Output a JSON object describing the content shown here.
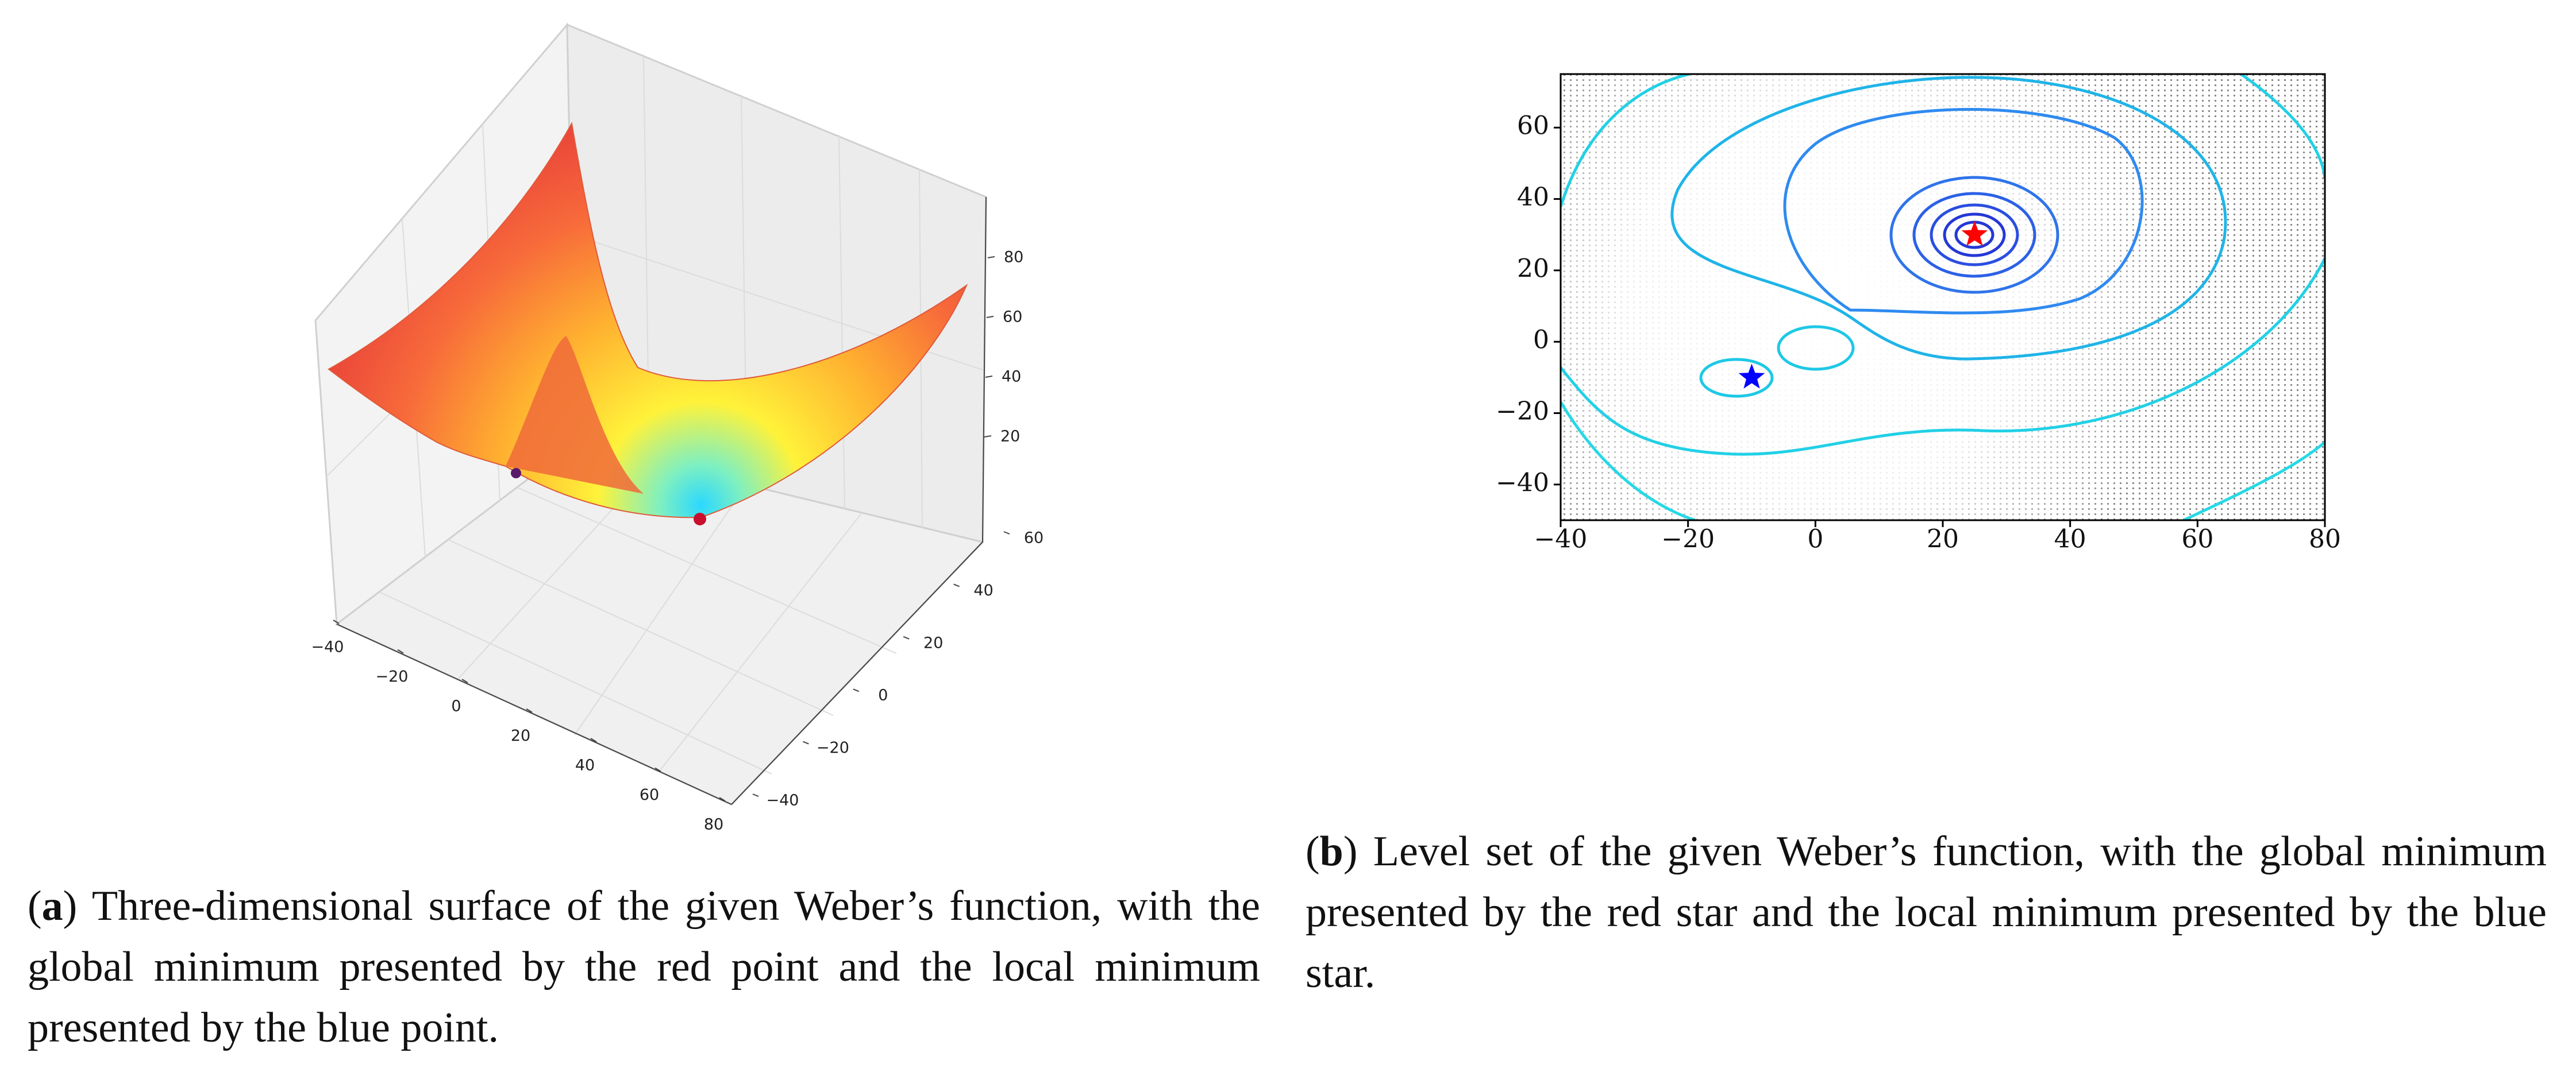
{
  "figure": {
    "panels": [
      {
        "type": "surface3d",
        "xticks": [
          {
            "value": -40,
            "label": "−40"
          },
          {
            "value": -20,
            "label": "−20"
          },
          0,
          20,
          40,
          60,
          80
        ],
        "yticks": [
          {
            "value": -40,
            "label": "−40"
          },
          {
            "value": -20,
            "label": "−20"
          },
          0,
          20,
          40,
          60
        ],
        "zticks": [
          20,
          40,
          60,
          80
        ],
        "caption": {
          "open": "(",
          "label": "a",
          "text": ") Three-dimensional surface of the given Weber’s function, with the global minimum presented by the red point and the local minimum presented by the blue point."
        }
      },
      {
        "type": "contour",
        "xlim": [
          -40,
          80
        ],
        "ylim": [
          -50,
          75
        ],
        "xticks": [
          {
            "value": -40,
            "label": "−40"
          },
          {
            "value": -20,
            "label": "−20"
          },
          0,
          20,
          40,
          60,
          80
        ],
        "yticks": [
          {
            "value": -40,
            "label": "−40"
          },
          {
            "value": -20,
            "label": "−20"
          },
          0,
          20,
          40,
          60
        ],
        "global_minimum": {
          "x": 25,
          "y": 30,
          "color": "red"
        },
        "local_minimum": {
          "x": -10,
          "y": -10,
          "color": "blue"
        },
        "caption": {
          "open": "(",
          "label": "b",
          "text": ") Level set of the given Weber’s function, with the global minimum presented by the red star and the local minimum presented by the blue star."
        }
      }
    ]
  }
}
